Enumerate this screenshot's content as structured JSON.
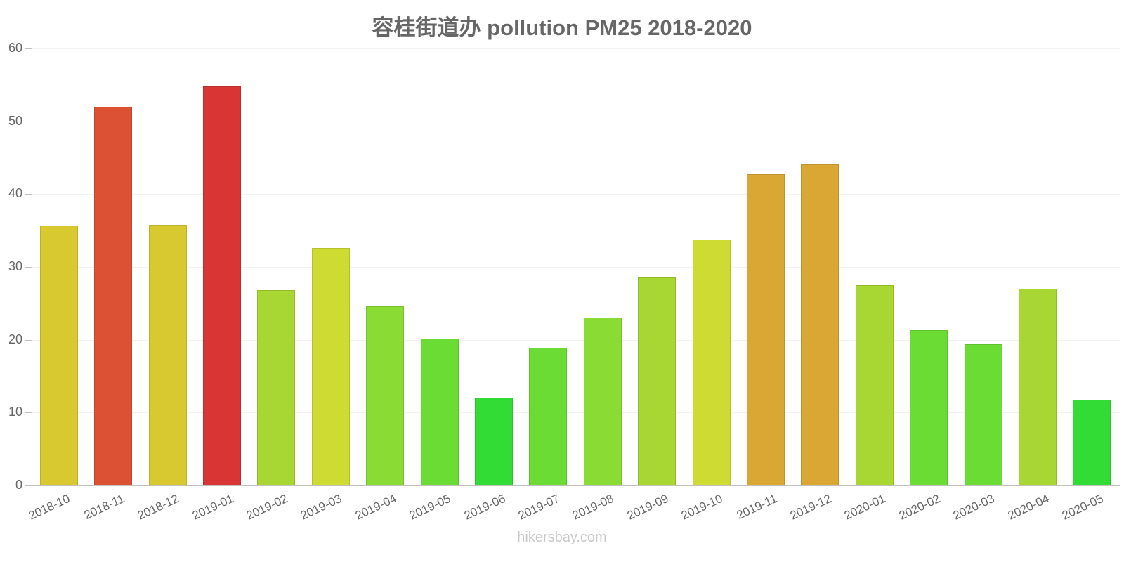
{
  "header": {
    "title": "容桂街道办 pollution PM25 2018-2020"
  },
  "watermark": "hikersbay.com",
  "y_ticks": [
    "0",
    "10",
    "20",
    "30",
    "40",
    "50",
    "60"
  ],
  "colors": {
    "yellow": "#d9c930",
    "orange_red": "#dc5034",
    "red": "#da3535",
    "lime": "#a8d632",
    "yellow_green": "#cddb33",
    "green": "#8adc34",
    "bright_green": "#6bdc34",
    "vivid_green": "#33dc34",
    "gold": "#dba734"
  },
  "chart_data": {
    "type": "bar",
    "title": "容桂街道办 pollution PM25 2018-2020",
    "xlabel": "",
    "ylabel": "",
    "ylim": [
      0,
      60
    ],
    "grid": true,
    "legend": "none",
    "categories": [
      "2018-10",
      "2018-11",
      "2018-12",
      "2019-01",
      "2019-02",
      "2019-03",
      "2019-04",
      "2019-05",
      "2019-06",
      "2019-07",
      "2019-08",
      "2019-09",
      "2019-10",
      "2019-11",
      "2019-12",
      "2020-01",
      "2020-02",
      "2020-03",
      "2020-04",
      "2020-05"
    ],
    "values": [
      35.7,
      52.0,
      35.8,
      54.8,
      26.8,
      32.6,
      24.6,
      20.2,
      12.1,
      18.9,
      23.1,
      28.6,
      33.8,
      42.7,
      44.1,
      27.5,
      21.3,
      19.4,
      27.0,
      11.8
    ],
    "bar_colors": [
      "#d9c930",
      "#dc5034",
      "#d9c930",
      "#da3535",
      "#a8d632",
      "#cddb33",
      "#8adc34",
      "#6bdc34",
      "#33dc34",
      "#6bdc34",
      "#8adc34",
      "#a8d632",
      "#cddb33",
      "#dba734",
      "#dba734",
      "#a8d632",
      "#6bdc34",
      "#6bdc34",
      "#a8d632",
      "#33dc34"
    ]
  }
}
